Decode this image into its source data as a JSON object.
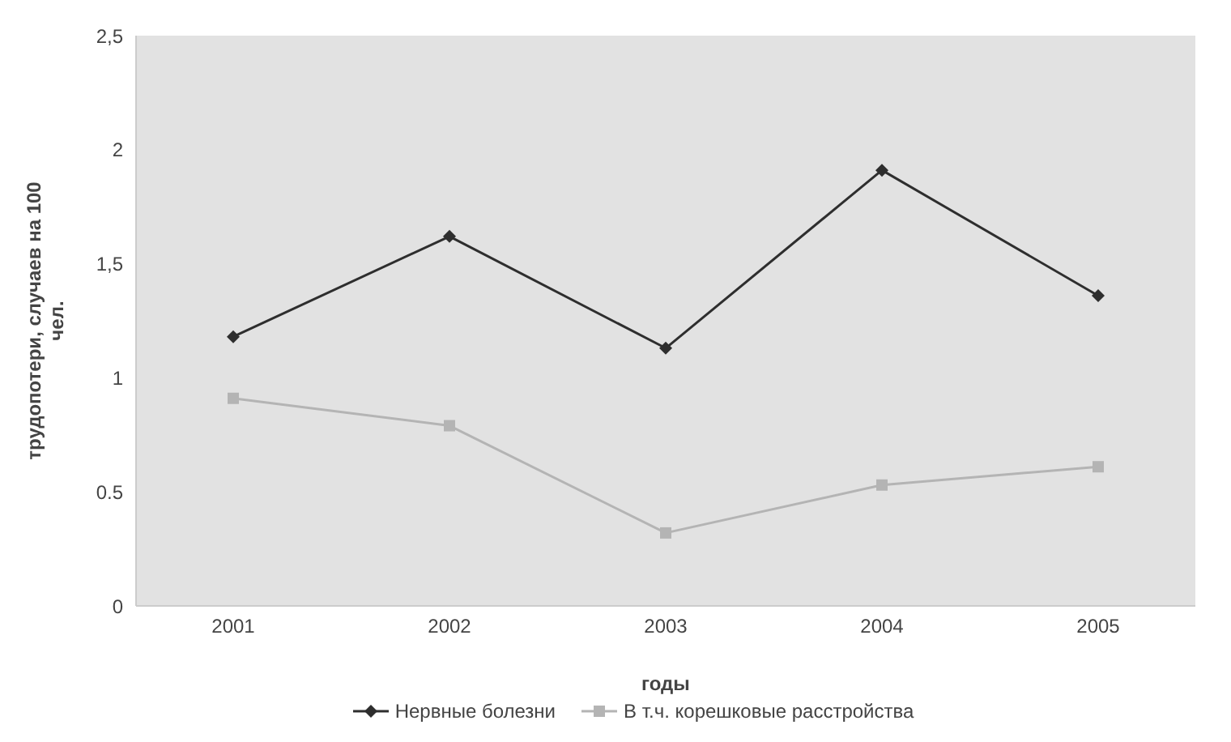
{
  "chart_data": {
    "type": "line",
    "xlabel": "годы",
    "ylabel": "трудопотери, случаев на 100 чел.",
    "categories": [
      "2001",
      "2002",
      "2003",
      "2004",
      "2005"
    ],
    "series": [
      {
        "name": "Нервные болезни",
        "color": "#2e2e2e",
        "marker": "diamond",
        "values": [
          1.18,
          1.62,
          1.13,
          1.91,
          1.36
        ]
      },
      {
        "name": "В т.ч. корешковые расстройства",
        "color": "#b4b4b4",
        "marker": "square",
        "values": [
          0.91,
          0.79,
          0.32,
          0.53,
          0.61
        ]
      }
    ],
    "ylim": [
      0,
      2.5
    ],
    "yticks": [
      0,
      {
        "value": 0.5,
        "label": "0.5"
      },
      1,
      {
        "value": 1.5,
        "label": "1,5"
      },
      2,
      {
        "value": 2.5,
        "label": "2,5"
      }
    ],
    "grid": false,
    "legend": "bottom",
    "line_style": "solid"
  }
}
